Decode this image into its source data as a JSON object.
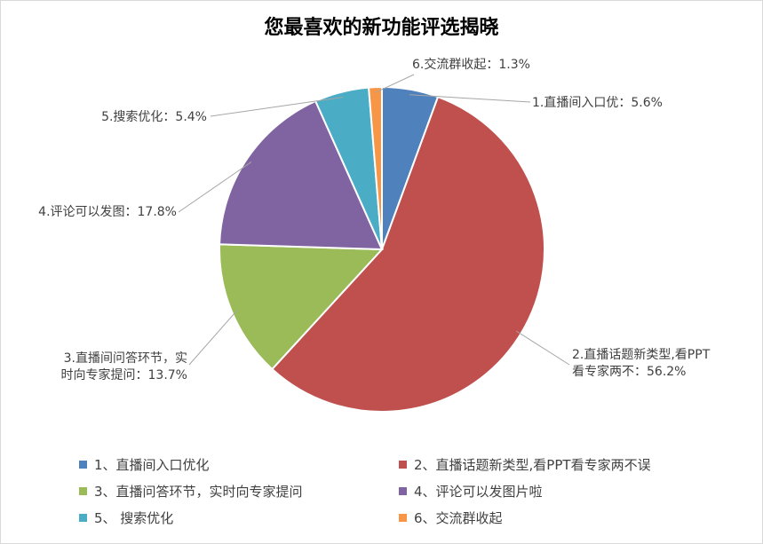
{
  "chart_data": {
    "type": "pie",
    "title": "您最喜欢的新功能评选揭晓",
    "slices": [
      {
        "legend": "1、直播间入口优化",
        "label": "1.直播间入口优：5.6%",
        "value": 5.6,
        "color": "#4F81BD"
      },
      {
        "legend": "2、直播话题新类型,看PPT看专家两不误",
        "label": "2.直播话题新类型,看PPT|看专家两不：56.2%",
        "value": 56.2,
        "color": "#C0504D"
      },
      {
        "legend": "3、直播问答环节，实时向专家提问",
        "label": "3.直播间问答环节，实|时向专家提问：13.7%",
        "value": 13.7,
        "color": "#9BBB59"
      },
      {
        "legend": "4、评论可以发图片啦",
        "label": "4.评论可以发图：17.8%",
        "value": 17.8,
        "color": "#8064A2"
      },
      {
        "legend": "5、 搜索优化",
        "label": "5.搜索优化：5.4%",
        "value": 5.4,
        "color": "#4BACC6"
      },
      {
        "legend": "6、交流群收起",
        "label": "6.交流群收起：1.3%",
        "value": 1.3,
        "color": "#F79646"
      }
    ],
    "legend_position": "bottom"
  }
}
